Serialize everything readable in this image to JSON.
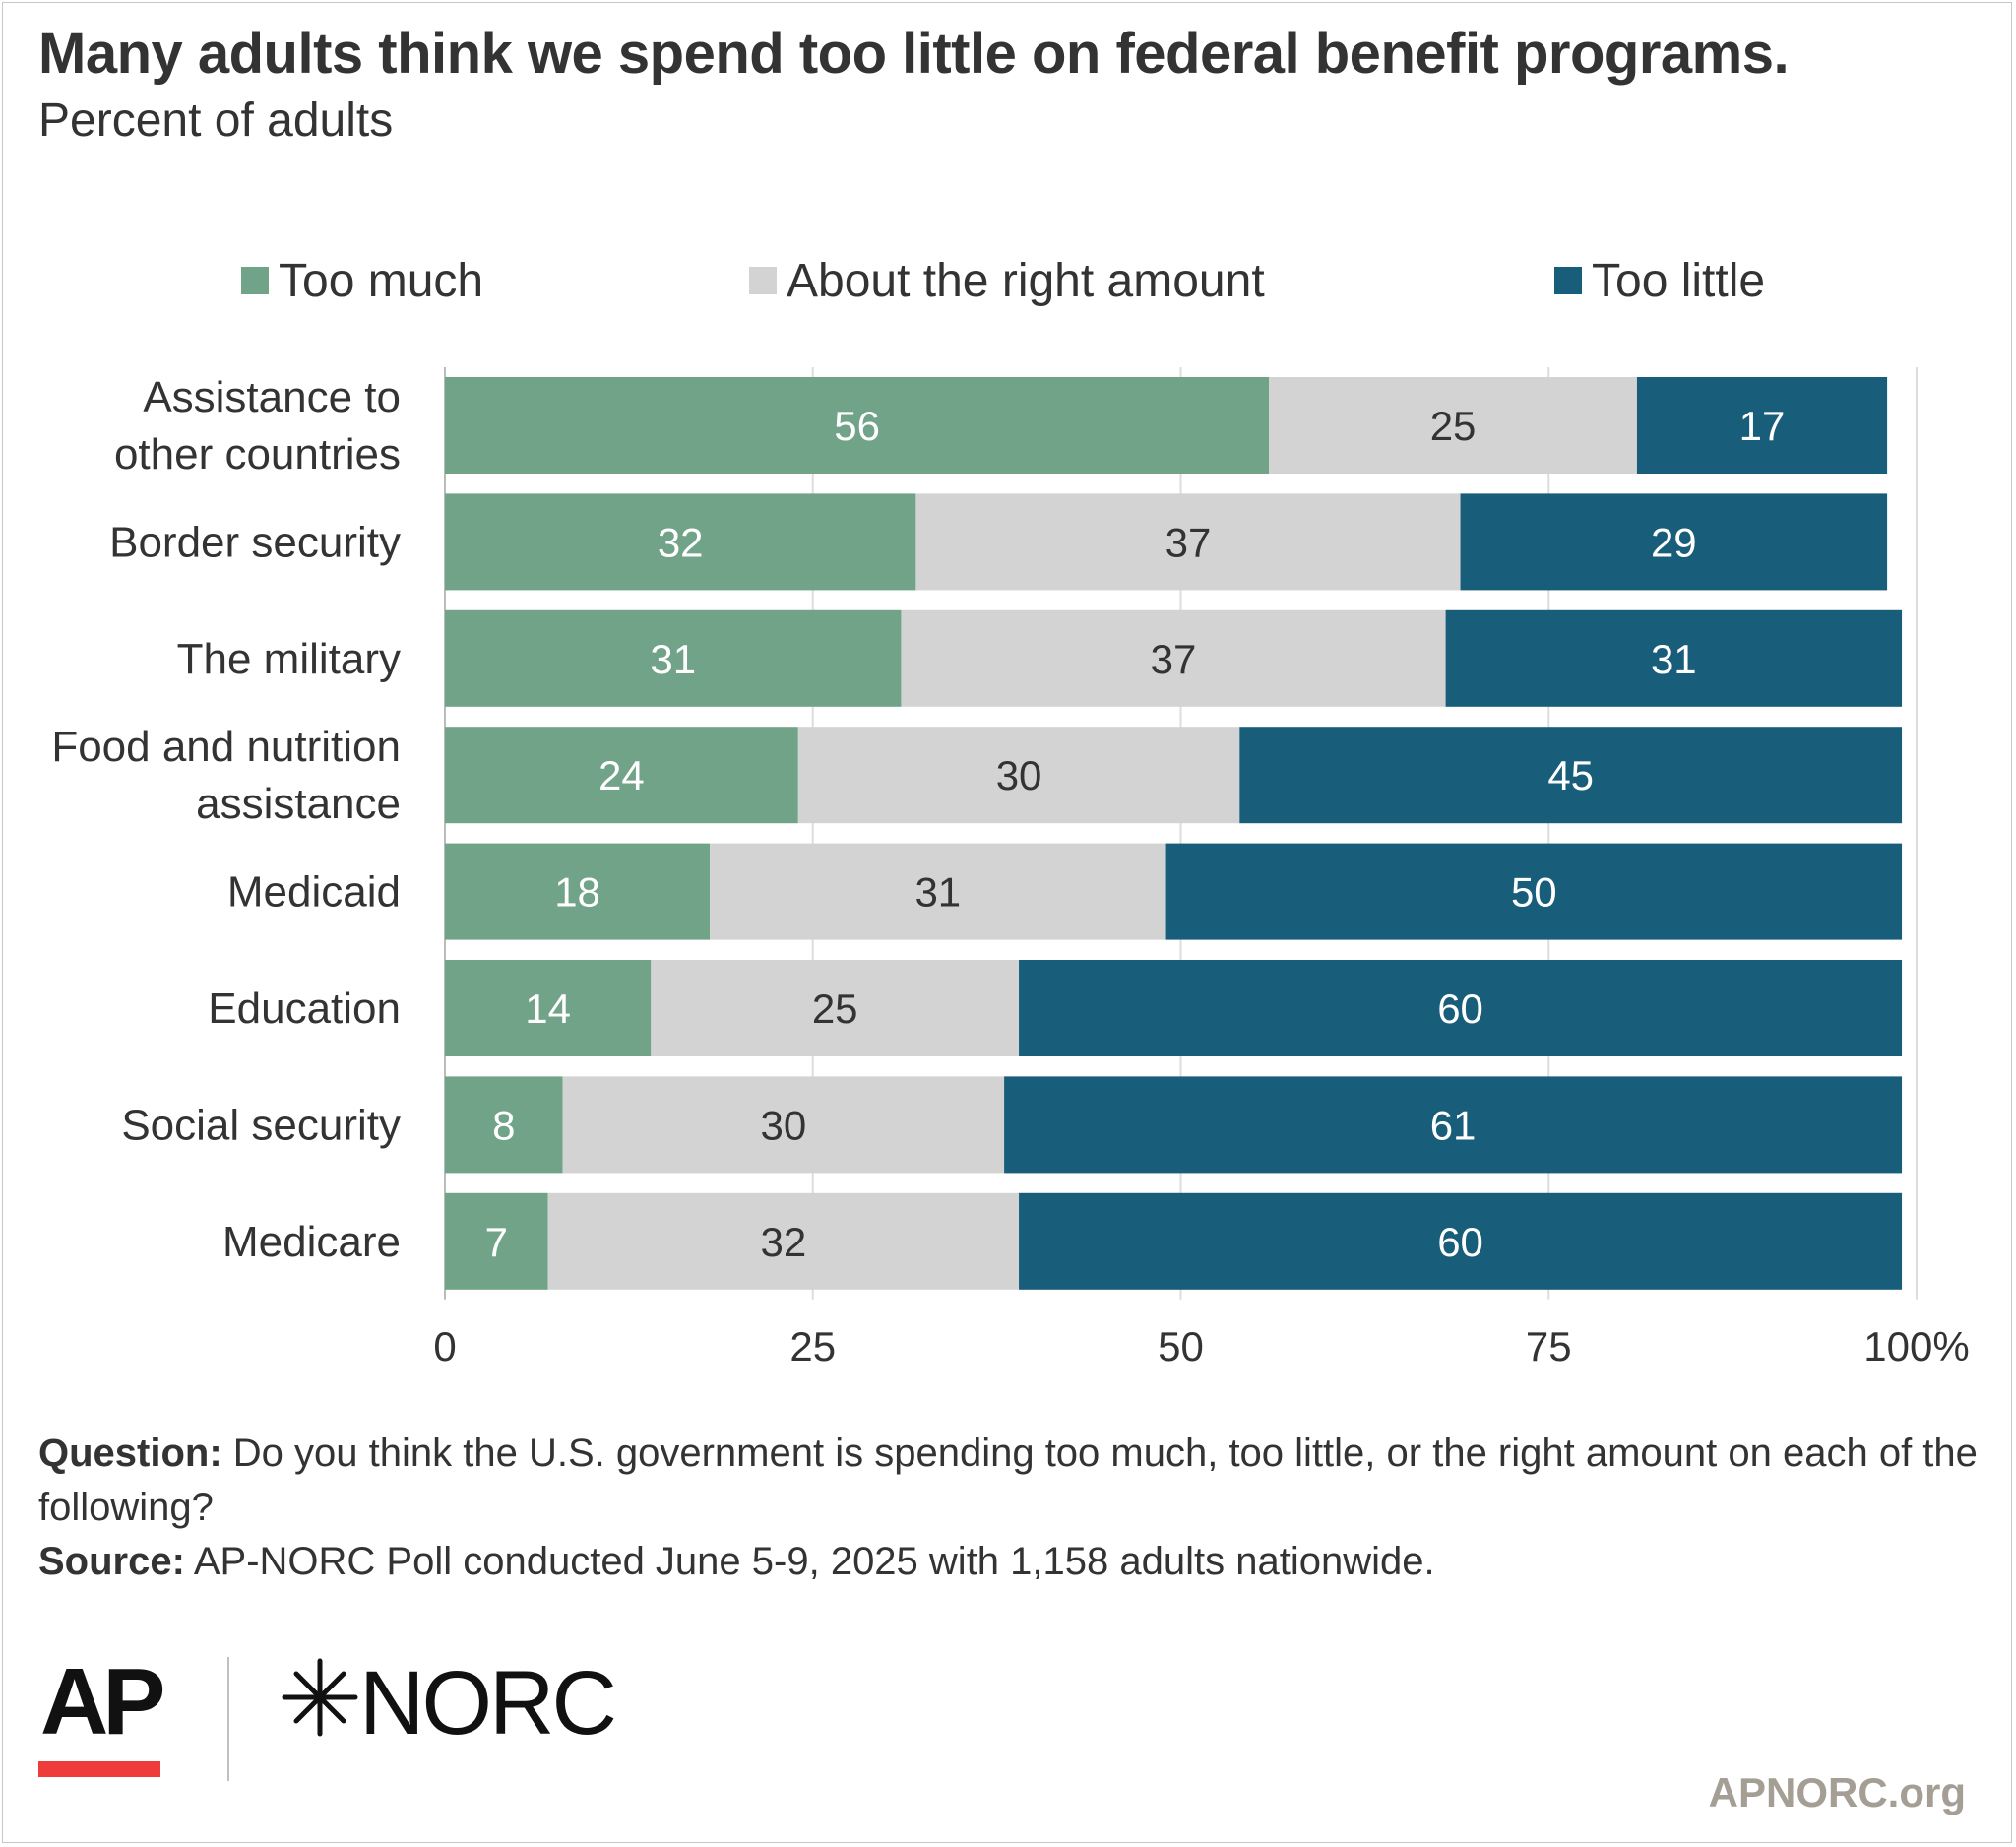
{
  "title": "Many adults think we spend too little on federal benefit programs.",
  "subtitle": "Percent of adults",
  "colors": {
    "too_much": "#70a387",
    "right_amount": "#d3d3d3",
    "too_little": "#185d7a",
    "text_dark": "#333333",
    "grid": "#dddddd",
    "ap_red": "#ef3b39",
    "site": "#a59e94"
  },
  "chart_data": {
    "type": "bar",
    "orientation": "horizontal",
    "stacked": true,
    "categories": [
      "Assistance to other countries",
      "Border security",
      "The military",
      "Food and nutrition assistance",
      "Medicaid",
      "Education",
      "Social security",
      "Medicare"
    ],
    "category_lines": [
      [
        "Assistance to",
        "other countries"
      ],
      [
        "Border security"
      ],
      [
        "The military"
      ],
      [
        "Food and nutrition",
        "assistance"
      ],
      [
        "Medicaid"
      ],
      [
        "Education"
      ],
      [
        "Social security"
      ],
      [
        "Medicare"
      ]
    ],
    "series": [
      {
        "name": "Too much",
        "color": "#70a387",
        "label_color": "#ffffff",
        "values": [
          56,
          32,
          31,
          24,
          18,
          14,
          8,
          7
        ]
      },
      {
        "name": "About the right amount",
        "color": "#d3d3d3",
        "label_color": "#333333",
        "values": [
          25,
          37,
          37,
          30,
          31,
          25,
          30,
          32
        ]
      },
      {
        "name": "Too little",
        "color": "#185d7a",
        "label_color": "#ffffff",
        "values": [
          17,
          29,
          31,
          45,
          50,
          60,
          61,
          60
        ]
      }
    ],
    "x_ticks": [
      "0",
      "25",
      "50",
      "75",
      "100%"
    ],
    "xlim": [
      0,
      100
    ],
    "grid": true,
    "legend_position": "top"
  },
  "legend": {
    "too_much": "Too much",
    "right_amount": "About the right amount",
    "too_little": "Too little"
  },
  "notes": {
    "question_label": "Question:",
    "question_text": " Do you think the U.S. government is spending too much, too little, or the right amount on each of the following?",
    "source_label": "Source:",
    "source_text": " AP-NORC Poll conducted June 5-9, 2025 with 1,158 adults nationwide."
  },
  "logos": {
    "ap": "AP",
    "norc": "NORC",
    "norc_icon": "star-burst-icon"
  },
  "site": "APNORC.org"
}
